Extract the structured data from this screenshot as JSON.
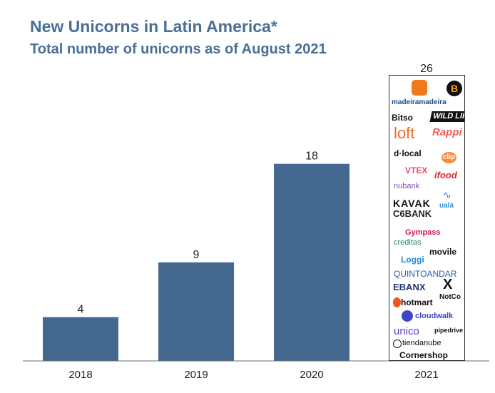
{
  "header": {
    "title": "New Unicorns in Latin America*",
    "subtitle": "Total number of unicorns as of August 2021"
  },
  "colors": {
    "bar": "#44688f",
    "title": "#4a6f96",
    "axis": "#6b6b6b"
  },
  "chart_data": {
    "type": "bar",
    "title": "New Unicorns in Latin America*",
    "subtitle": "Total number of unicorns as of August 2021",
    "categories": [
      "2018",
      "2019",
      "2020",
      "2021"
    ],
    "values": [
      4,
      9,
      18,
      26
    ],
    "value_labels": [
      "4",
      "9",
      "18",
      "26"
    ],
    "xlabel": "",
    "ylabel": "",
    "ylim": [
      0,
      27
    ],
    "grid": false,
    "legend": "none",
    "last_bar_rendered_as": "logo-collage"
  },
  "logos": {
    "madeiramadeira": "madeiramadeira",
    "bitso": "Bitso",
    "wildlife": "WILD LIFE",
    "loft": "loft",
    "rappi": "Rappi",
    "dlocal": "d·local",
    "clip": "clip",
    "vtex": "VTEX",
    "ifood": "ifood",
    "nubank": "nubank",
    "uala": "ualá",
    "kavak": "KAVAK",
    "c6bank": "C6BANK",
    "gympass": "Gympass",
    "creditas": "creditas",
    "movile": "movile",
    "loggi": "Loggi",
    "quintoandar": "QUINTOANDAR",
    "ebanx": "EBANX",
    "x": "X",
    "notco": "NotCo",
    "hotmart": "hotmart",
    "cloudwalk": "cloudwalk",
    "unico": "unico",
    "pipedrive": "pipedrive",
    "tiendanube": "tiendanube",
    "cornershop": "Cornershop",
    "b_badge": "B"
  }
}
